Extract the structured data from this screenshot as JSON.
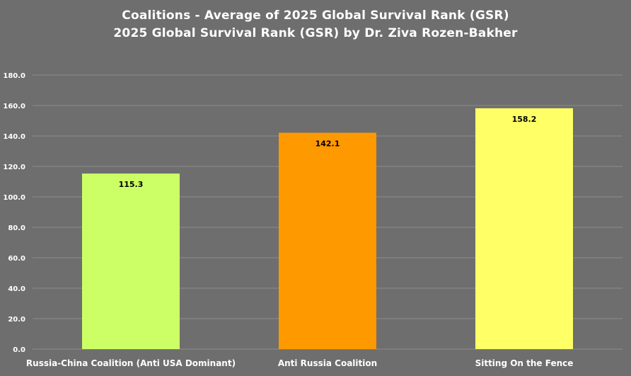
{
  "chart_data": {
    "type": "bar",
    "title": "Coalitions - Average of 2025 Global Survival Rank (GSR)",
    "subtitle": "2025 Global Survival Rank (GSR) by Dr. Ziva Rozen-Bakher",
    "categories": [
      "Russia-China Coalition (Anti USA Dominant)",
      "Anti Russia Coalition",
      "Sitting On the Fence"
    ],
    "values": [
      115.3,
      142.1,
      158.2
    ],
    "value_labels": [
      "115.3",
      "142.1",
      "158.2"
    ],
    "colors": [
      "#ccff66",
      "#ff9900",
      "#ffff66"
    ],
    "ylim": [
      0,
      180
    ],
    "yticks": [
      0,
      20,
      40,
      60,
      80,
      100,
      120,
      140,
      160,
      180
    ],
    "ytick_labels": [
      "0.0",
      "20.0",
      "40.0",
      "60.0",
      "80.0",
      "100.0",
      "120.0",
      "140.0",
      "160.0",
      "180.0"
    ],
    "xlabel": "",
    "ylabel": "",
    "grid": true,
    "legend": "none"
  },
  "theme": {
    "background": "#6e6e6e",
    "gridline": "#8c8c8c",
    "text": "#ffffff",
    "data_label_text": "#000000"
  }
}
